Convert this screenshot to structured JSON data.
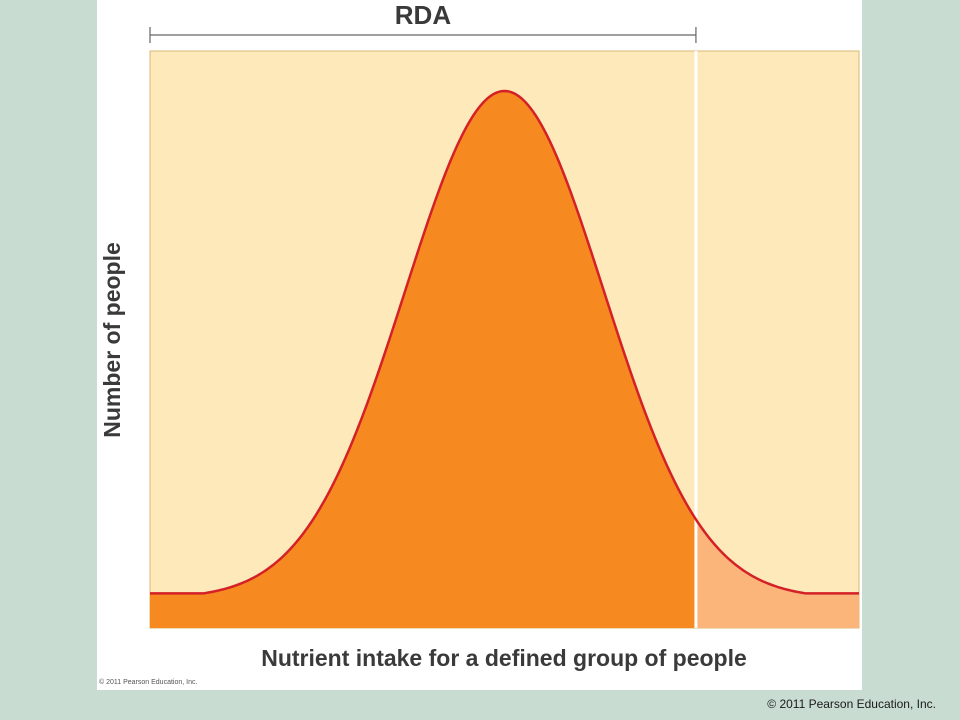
{
  "chart_data": {
    "type": "area",
    "title": "RDA",
    "xlabel": "Nutrient intake for a defined group of people",
    "ylabel": "Number of people",
    "distribution": {
      "shape": "normal",
      "mean": 0.5,
      "sd": 0.14,
      "baseline_fraction": 0.06
    },
    "xlim": [
      0,
      1
    ],
    "ylim": [
      0,
      1
    ],
    "rda_cutoff_x": 0.77,
    "grid": false,
    "legend": "none"
  },
  "colors": {
    "plot_background": "#fde9b9",
    "area_below_rda": "#f68a20",
    "area_above_rda": "#fbb57a",
    "curve": "#d42027",
    "rda_line": "#ffffff",
    "bracket": "#666666",
    "slide_background": "#c9dcd2"
  },
  "footer": {
    "inner_copyright": "© 2011 Pearson Education, Inc.",
    "slide_copyright": "© 2011 Pearson Education, Inc."
  }
}
